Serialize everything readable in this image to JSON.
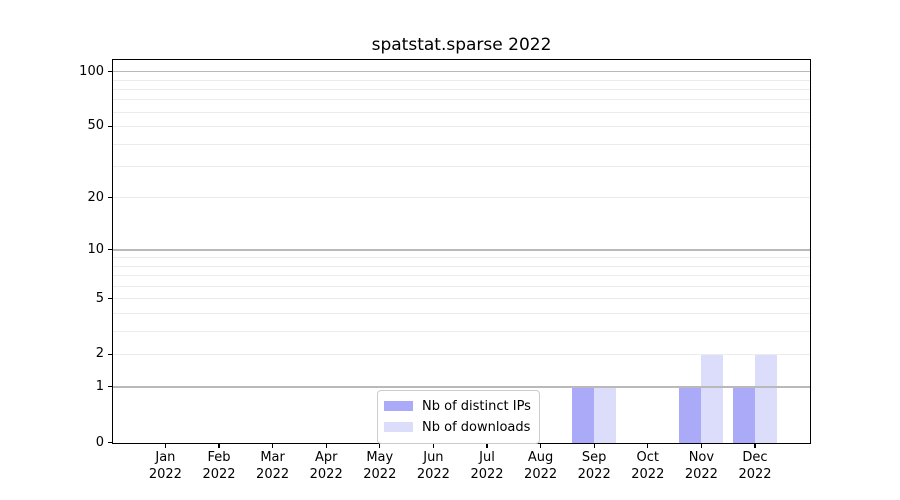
{
  "chart_data": {
    "type": "bar",
    "title": "spatstat.sparse 2022",
    "xlabel": "",
    "ylabel": "",
    "categories": [
      "Jan 2022",
      "Feb 2022",
      "Mar 2022",
      "Apr 2022",
      "May 2022",
      "Jun 2022",
      "Jul 2022",
      "Aug 2022",
      "Sep 2022",
      "Oct 2022",
      "Nov 2022",
      "Dec 2022"
    ],
    "series": [
      {
        "name": "Nb of distinct IPs",
        "color": "#aaaaf8",
        "values": [
          0,
          0,
          0,
          0,
          0,
          0,
          0,
          0,
          1,
          0,
          1,
          1
        ]
      },
      {
        "name": "Nb of downloads",
        "color": "#dcdcfb",
        "values": [
          0,
          0,
          0,
          0,
          0,
          0,
          0,
          0,
          1,
          0,
          2,
          2
        ]
      }
    ],
    "y_axis": {
      "scale": "log1p",
      "ticks": [
        0,
        1,
        2,
        5,
        10,
        20,
        50,
        100
      ],
      "major_gridlines": [
        1,
        10,
        100
      ],
      "minor_gridlines": [
        2,
        3,
        4,
        5,
        6,
        7,
        8,
        9,
        20,
        30,
        40,
        50,
        60,
        70,
        80,
        90
      ],
      "ylim": [
        0,
        115
      ],
      "grid": true
    },
    "legend": {
      "position": "bottom-center",
      "entries": [
        "Nb of distinct IPs",
        "Nb of downloads"
      ]
    },
    "colors": {
      "major_grid": "#b9b9b9",
      "minor_grid": "#ececec",
      "spine": "#000000",
      "text": "#000000",
      "legend_border": "#cccccc"
    }
  }
}
